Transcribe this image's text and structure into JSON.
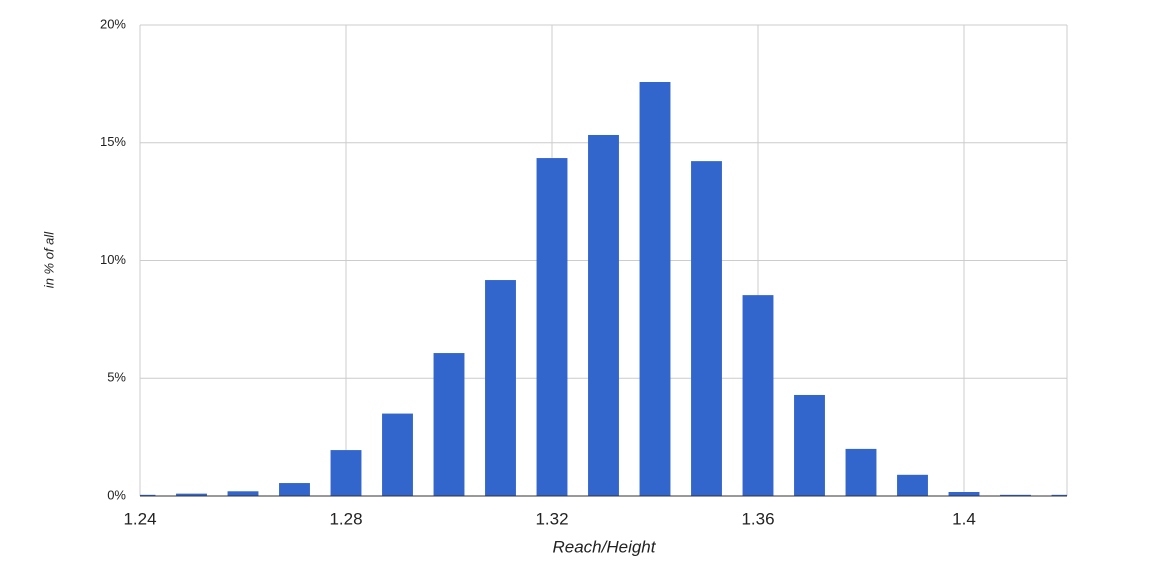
{
  "chart_data": {
    "type": "bar",
    "x_label": "Reach/Height",
    "y_label": "in % of all",
    "x": [
      1.24,
      1.25,
      1.26,
      1.27,
      1.28,
      1.29,
      1.3,
      1.31,
      1.32,
      1.33,
      1.34,
      1.35,
      1.36,
      1.37,
      1.38,
      1.39,
      1.4,
      1.41,
      1.42
    ],
    "values": [
      0.05,
      0.1,
      0.2,
      0.55,
      1.95,
      3.5,
      6.07,
      9.17,
      14.35,
      15.33,
      17.58,
      14.22,
      8.53,
      4.29,
      2.0,
      0.9,
      0.17,
      0.05,
      0.05
    ],
    "color": "#3366cc",
    "xlim": [
      1.24,
      1.42
    ],
    "xticks": [
      1.24,
      1.28,
      1.32,
      1.36,
      1.4
    ],
    "ylim": [
      0,
      20
    ],
    "yticks": [
      {
        "value": 0,
        "label": "0%"
      },
      {
        "value": 5,
        "label": "5%"
      },
      {
        "value": 10,
        "label": "10%"
      },
      {
        "value": 15,
        "label": "15%"
      },
      {
        "value": 20,
        "label": "20%"
      }
    ],
    "grid": true
  }
}
